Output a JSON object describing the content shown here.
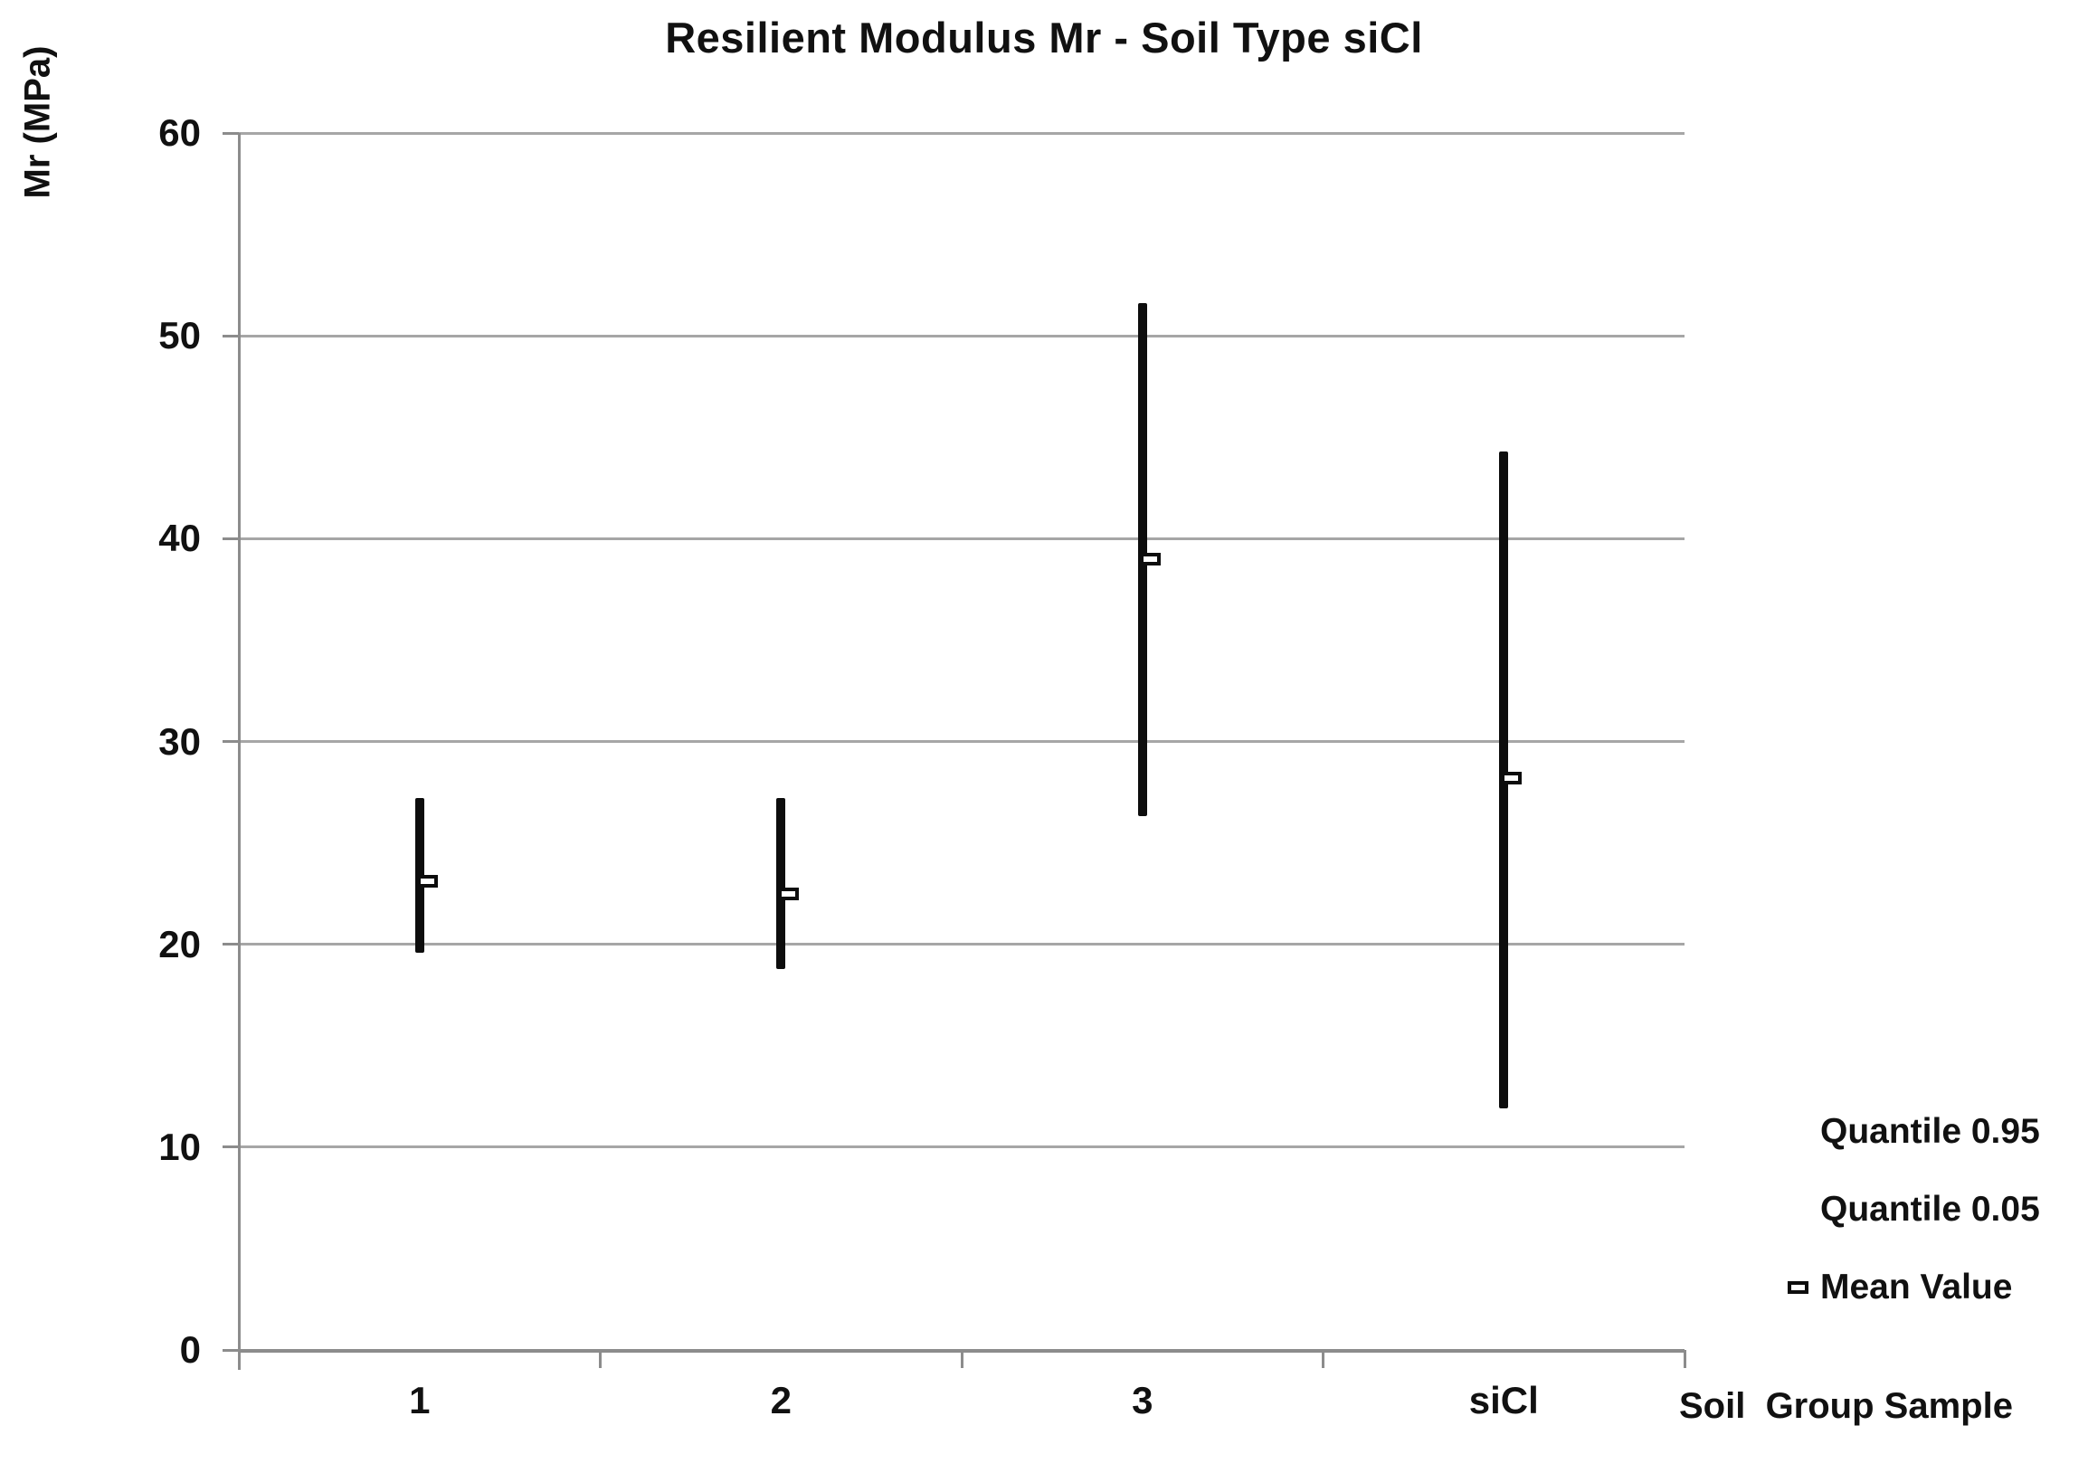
{
  "title": "Resilient Modulus Mr - Soil Type siCl",
  "y_axis": {
    "title": "Mr (MPa)",
    "ticks": [
      0,
      10,
      20,
      30,
      40,
      50,
      60
    ],
    "min": 0,
    "max": 60
  },
  "x_axis": {
    "title": "Soil  Group Sample",
    "categories": [
      "1",
      "2",
      "3",
      "siCl"
    ]
  },
  "legend": {
    "items": [
      {
        "label": "Quantile 0.95",
        "marker": "none"
      },
      {
        "label": "Quantile 0.05",
        "marker": "none"
      },
      {
        "label": "Mean Value",
        "marker": "open-square"
      }
    ]
  },
  "colors": {
    "data_line": "#0d0d0d",
    "gridline": "#a6a6a6",
    "axis": "#8c8c8c",
    "text": "#111111",
    "marker_fill": "#ffffff"
  },
  "chart_data": {
    "type": "line",
    "subtype": "high-low-range-with-mean-marker",
    "title": "Resilient Modulus Mr - Soil Type siCl",
    "categories": [
      "1",
      "2",
      "3",
      "siCl"
    ],
    "series": [
      {
        "name": "Quantile 0.95",
        "values": [
          27.2,
          27.2,
          51.6,
          44.3
        ]
      },
      {
        "name": "Quantile 0.05",
        "values": [
          19.6,
          18.8,
          26.3,
          11.9
        ]
      },
      {
        "name": "Mean Value",
        "values": [
          23.1,
          22.5,
          39.0,
          28.2
        ]
      }
    ],
    "xlabel": "Soil  Group Sample",
    "ylabel": "Mr (MPa)",
    "ylim": [
      0,
      60
    ],
    "ytick_interval": 10,
    "grid": true,
    "legend_position": "bottom-right"
  }
}
